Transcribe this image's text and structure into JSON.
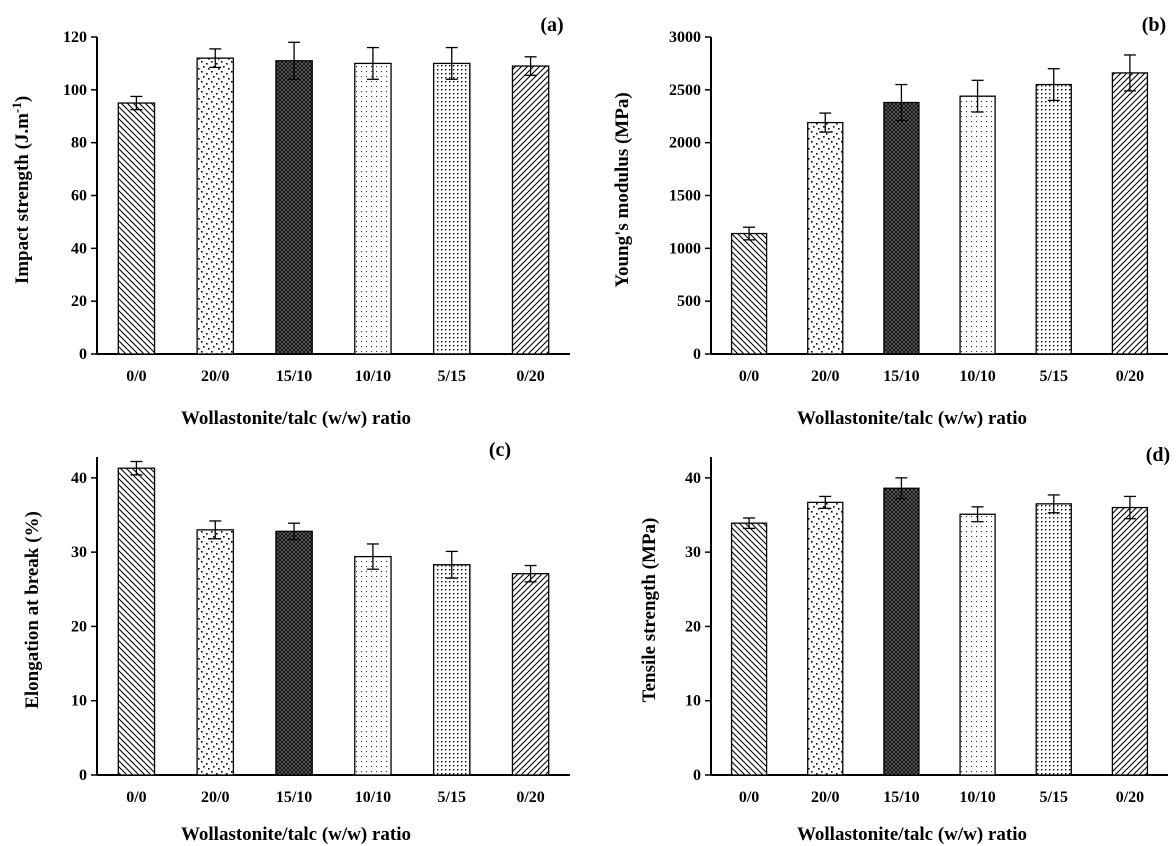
{
  "chart_data": [
    {
      "type": "bar",
      "panel_label": "(a)",
      "title": "",
      "xlabel": "Wollastonite/talc (w/w) ratio",
      "ylabel": "Impact strength (J.m",
      "ylabel_superscript": "-1",
      "ylabel_suffix": ")",
      "categories": [
        "0/0",
        "20/0",
        "15/10",
        "10/10",
        "5/15",
        "0/20"
      ],
      "values": [
        95,
        112,
        111,
        110,
        110,
        109
      ],
      "errors": [
        2.5,
        3.5,
        7,
        6,
        6,
        3.5
      ],
      "ylim": [
        0,
        120
      ],
      "yticks": [
        "0",
        "20",
        "40",
        "60",
        "80",
        "100",
        "120"
      ],
      "patterns": [
        "back-hatch",
        "dots-sparse",
        "crosshatch-dense",
        "dots-fine",
        "dots-medium",
        "fwd-hatch"
      ],
      "grid": false
    },
    {
      "type": "bar",
      "panel_label": "(b)",
      "title": "",
      "xlabel": "Wollastonite/talc (w/w) ratio",
      "ylabel": "Young's modulus (MPa)",
      "categories": [
        "0/0",
        "20/0",
        "15/10",
        "10/10",
        "5/15",
        "0/20"
      ],
      "values": [
        1140,
        2190,
        2380,
        2440,
        2550,
        2660
      ],
      "errors": [
        60,
        90,
        170,
        150,
        150,
        170
      ],
      "ylim": [
        0,
        3000
      ],
      "yticks": [
        "0",
        "500",
        "1000",
        "1500",
        "2000",
        "2500",
        "3000"
      ],
      "patterns": [
        "back-hatch",
        "dots-sparse",
        "crosshatch-dense",
        "dots-fine",
        "dots-medium",
        "fwd-hatch"
      ],
      "grid": false
    },
    {
      "type": "bar",
      "panel_label": "(c)",
      "title": "",
      "xlabel": "Wollastonite/talc (w/w) ratio",
      "ylabel": "Elongation at break (%)",
      "categories": [
        "0/0",
        "20/0",
        "15/10",
        "10/10",
        "5/15",
        "0/20"
      ],
      "values": [
        41.3,
        33,
        32.8,
        29.4,
        28.3,
        27.1
      ],
      "errors": [
        0.9,
        1.2,
        1.1,
        1.7,
        1.8,
        1.1
      ],
      "ylim": [
        0,
        42
      ],
      "yticks": [
        "0",
        "10",
        "20",
        "30",
        "40"
      ],
      "patterns": [
        "back-hatch",
        "dots-sparse",
        "crosshatch-dense",
        "dots-fine",
        "dots-medium",
        "fwd-hatch"
      ],
      "grid": false
    },
    {
      "type": "bar",
      "panel_label": "(d)",
      "title": "",
      "xlabel": "Wollastonite/talc (w/w) ratio",
      "ylabel": "Tensile strength (MPa)",
      "categories": [
        "0/0",
        "20/0",
        "15/10",
        "10/10",
        "5/15",
        "0/20"
      ],
      "values": [
        33.9,
        36.7,
        38.6,
        35.1,
        36.5,
        36
      ],
      "errors": [
        0.7,
        0.8,
        1.4,
        1,
        1.2,
        1.5
      ],
      "ylim": [
        0,
        42
      ],
      "yticks": [
        "0",
        "10",
        "20",
        "30",
        "40"
      ],
      "patterns": [
        "back-hatch",
        "dots-sparse",
        "crosshatch-dense",
        "dots-fine",
        "dots-medium",
        "fwd-hatch"
      ],
      "grid": false
    }
  ]
}
